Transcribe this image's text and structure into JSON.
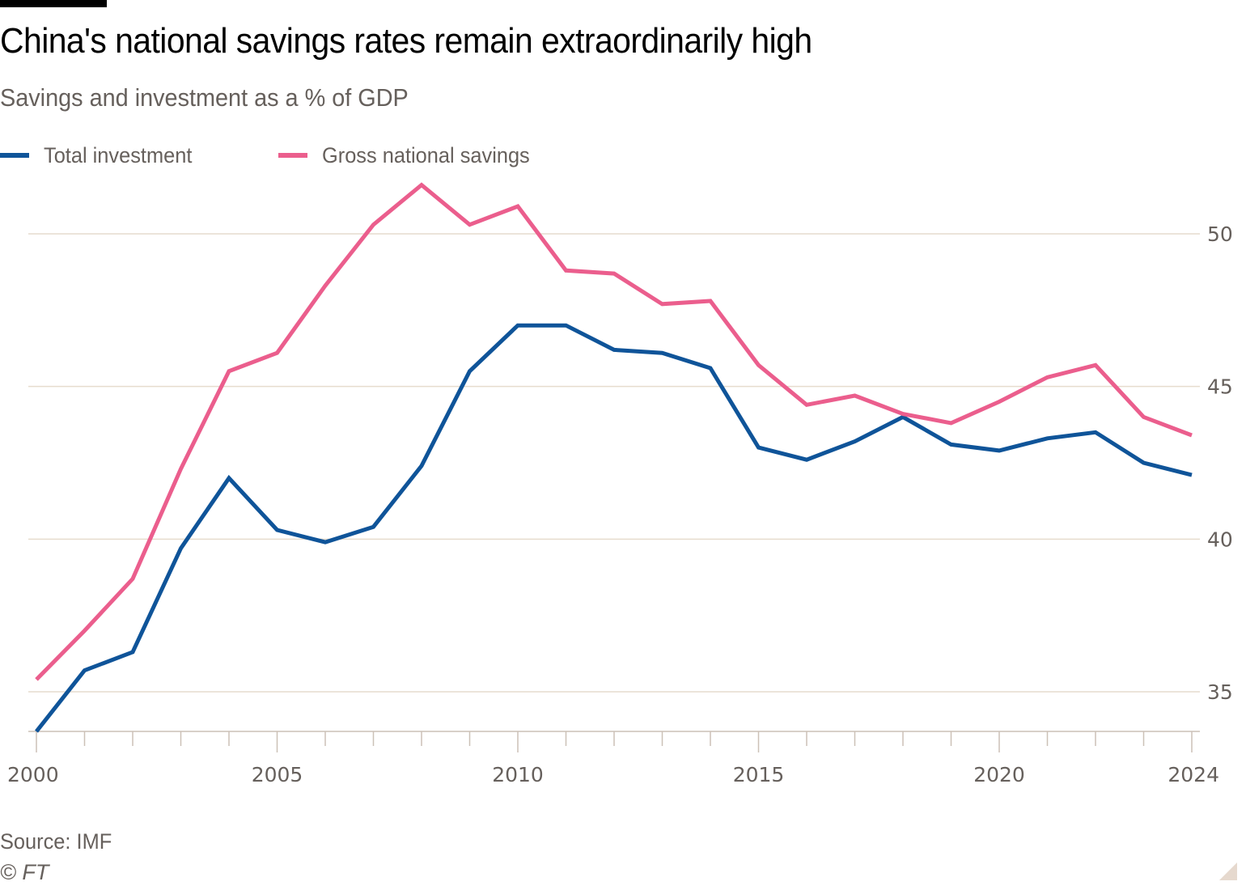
{
  "header": {
    "title": "China's national savings rates remain extraordinarily high",
    "subtitle": "Savings and investment as a % of GDP"
  },
  "legend": [
    {
      "label": "Total investment",
      "color": "#0f5499"
    },
    {
      "label": "Gross national savings",
      "color": "#eb5e8d"
    }
  ],
  "footer": {
    "source": "Source: IMF",
    "copyright": "© FT"
  },
  "colors": {
    "gridline": "#e6dcce",
    "axis": "#ccc1b7",
    "tick_text": "#66605c"
  },
  "chart_data": {
    "type": "line",
    "title": "China's national savings rates remain extraordinarily high",
    "subtitle": "Savings and investment as a % of GDP",
    "xlabel": "",
    "ylabel": "",
    "x": [
      2000,
      2001,
      2002,
      2003,
      2004,
      2005,
      2006,
      2007,
      2008,
      2009,
      2010,
      2011,
      2012,
      2013,
      2014,
      2015,
      2016,
      2017,
      2018,
      2019,
      2020,
      2021,
      2022,
      2023,
      2024
    ],
    "x_ticks": [
      "2000",
      "2005",
      "2010",
      "2015",
      "2020",
      "2024"
    ],
    "x_tick_values": [
      2000,
      2005,
      2010,
      2015,
      2020,
      2024
    ],
    "xlim": [
      2000,
      2024
    ],
    "y_ticks": [
      "35",
      "40",
      "45",
      "50"
    ],
    "y_tick_values": [
      35,
      40,
      45,
      50
    ],
    "ylim": [
      33.7,
      52
    ],
    "y_axis_side": "right",
    "grid": true,
    "legend_position": "top-left",
    "series": [
      {
        "name": "Total investment",
        "color": "#0f5499",
        "values": [
          33.7,
          35.7,
          36.3,
          39.7,
          42.0,
          40.3,
          39.9,
          40.4,
          42.4,
          45.5,
          47.0,
          47.0,
          46.2,
          46.1,
          45.6,
          43.0,
          42.6,
          43.2,
          44.0,
          43.1,
          42.9,
          43.3,
          43.5,
          42.5,
          42.1
        ]
      },
      {
        "name": "Gross national savings",
        "color": "#eb5e8d",
        "values": [
          35.4,
          37.0,
          38.7,
          42.3,
          45.5,
          46.1,
          48.3,
          50.3,
          51.6,
          50.3,
          50.9,
          48.8,
          48.7,
          47.7,
          47.8,
          45.7,
          44.4,
          44.7,
          44.1,
          43.8,
          44.5,
          45.3,
          45.7,
          44.0,
          43.4
        ]
      }
    ]
  }
}
